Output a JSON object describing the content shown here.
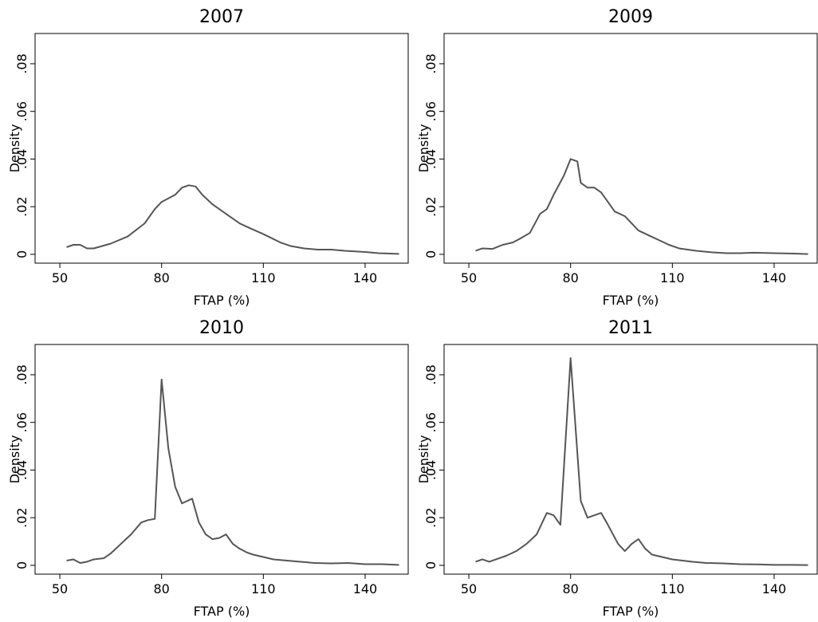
{
  "chart_data": [
    {
      "type": "line",
      "title": "2007",
      "xlabel": "FTAP (%)",
      "ylabel": "Density",
      "color": "#555555",
      "x": [
        52,
        54,
        56,
        58,
        60,
        65,
        70,
        75,
        78,
        80,
        84,
        86,
        88,
        90,
        92,
        95,
        100,
        103,
        106,
        110,
        115,
        118,
        122,
        126,
        130,
        134,
        140,
        144,
        150
      ],
      "values": [
        0.003,
        0.004,
        0.004,
        0.0025,
        0.0025,
        0.0045,
        0.0075,
        0.013,
        0.019,
        0.022,
        0.025,
        0.028,
        0.029,
        0.0285,
        0.025,
        0.021,
        0.016,
        0.013,
        0.011,
        0.0085,
        0.005,
        0.0035,
        0.0025,
        0.002,
        0.002,
        0.0015,
        0.001,
        0.0005,
        0.0002
      ],
      "xlim": [
        42.7,
        152.7
      ],
      "ylim": [
        -0.0037,
        0.0927
      ],
      "xticks": [
        50,
        80,
        110,
        140
      ],
      "yticks": [
        0,
        {
          "value": 0.02,
          "label": ".02"
        },
        {
          "value": 0.04,
          "label": ".04"
        },
        {
          "value": 0.06,
          "label": ".06"
        },
        {
          "value": 0.08,
          "label": ".08"
        }
      ]
    },
    {
      "type": "line",
      "title": "2009",
      "xlabel": "FTAP (%)",
      "ylabel": "Density",
      "color": "#555555",
      "x": [
        52,
        54,
        57,
        60,
        63,
        65,
        68,
        71,
        73,
        75,
        78,
        80,
        82,
        83,
        85,
        87,
        89,
        91,
        93,
        96,
        98,
        100,
        103,
        106,
        109,
        112,
        117,
        122,
        126,
        130,
        134,
        140,
        146,
        150
      ],
      "values": [
        0.0015,
        0.0025,
        0.0023,
        0.004,
        0.005,
        0.0065,
        0.009,
        0.017,
        0.019,
        0.025,
        0.033,
        0.04,
        0.039,
        0.03,
        0.028,
        0.028,
        0.026,
        0.022,
        0.018,
        0.016,
        0.013,
        0.01,
        0.008,
        0.006,
        0.004,
        0.0025,
        0.0015,
        0.0008,
        0.0005,
        0.0005,
        0.0007,
        0.0005,
        0.0003,
        0.0001
      ],
      "xlim": [
        42.7,
        152.7
      ],
      "ylim": [
        -0.0037,
        0.0927
      ],
      "xticks": [
        50,
        80,
        110,
        140
      ],
      "yticks": [
        0,
        {
          "value": 0.02,
          "label": ".02"
        },
        {
          "value": 0.04,
          "label": ".04"
        },
        {
          "value": 0.06,
          "label": ".06"
        },
        {
          "value": 0.08,
          "label": ".08"
        }
      ]
    },
    {
      "type": "line",
      "title": "2010",
      "xlabel": "FTAP (%)",
      "ylabel": "Density",
      "color": "#555555",
      "x": [
        52,
        54,
        56,
        58,
        60,
        63,
        65,
        68,
        71,
        74,
        76,
        78,
        80,
        82,
        84,
        86,
        89,
        91,
        93,
        95,
        97,
        99,
        101,
        103,
        105,
        107,
        110,
        113,
        117,
        121,
        125,
        130,
        135,
        140,
        145,
        150
      ],
      "values": [
        0.002,
        0.0025,
        0.001,
        0.0015,
        0.0025,
        0.003,
        0.005,
        0.009,
        0.013,
        0.018,
        0.019,
        0.0195,
        0.078,
        0.049,
        0.033,
        0.026,
        0.028,
        0.018,
        0.013,
        0.011,
        0.0115,
        0.013,
        0.009,
        0.007,
        0.0055,
        0.0045,
        0.0035,
        0.0025,
        0.002,
        0.0015,
        0.001,
        0.0008,
        0.001,
        0.0005,
        0.0005,
        0.0002
      ],
      "xlim": [
        42.7,
        152.7
      ],
      "ylim": [
        -0.0037,
        0.0927
      ],
      "xticks": [
        50,
        80,
        110,
        140
      ],
      "yticks": [
        0,
        {
          "value": 0.02,
          "label": ".02"
        },
        {
          "value": 0.04,
          "label": ".04"
        },
        {
          "value": 0.06,
          "label": ".06"
        },
        {
          "value": 0.08,
          "label": ".08"
        }
      ]
    },
    {
      "type": "line",
      "title": "2011",
      "xlabel": "FTAP (%)",
      "ylabel": "Density",
      "color": "#555555",
      "x": [
        52,
        54,
        56,
        58,
        61,
        64,
        67,
        70,
        73,
        75,
        77,
        80,
        83,
        85,
        87,
        89,
        91,
        94,
        96,
        98,
        100,
        102,
        104,
        107,
        110,
        113,
        116,
        120,
        125,
        130,
        135,
        140,
        145,
        150
      ],
      "values": [
        0.0015,
        0.0025,
        0.0015,
        0.0025,
        0.004,
        0.006,
        0.009,
        0.013,
        0.022,
        0.021,
        0.017,
        0.087,
        0.027,
        0.02,
        0.021,
        0.022,
        0.017,
        0.009,
        0.006,
        0.009,
        0.011,
        0.007,
        0.0045,
        0.0035,
        0.0025,
        0.002,
        0.0015,
        0.001,
        0.0008,
        0.0005,
        0.0004,
        0.0002,
        0.0002,
        0.0001
      ],
      "xlim": [
        42.7,
        152.7
      ],
      "ylim": [
        -0.0037,
        0.0927
      ],
      "xticks": [
        50,
        80,
        110,
        140
      ],
      "yticks": [
        0,
        {
          "value": 0.02,
          "label": ".02"
        },
        {
          "value": 0.04,
          "label": ".04"
        },
        {
          "value": 0.06,
          "label": ".06"
        },
        {
          "value": 0.08,
          "label": ".08"
        }
      ]
    }
  ]
}
